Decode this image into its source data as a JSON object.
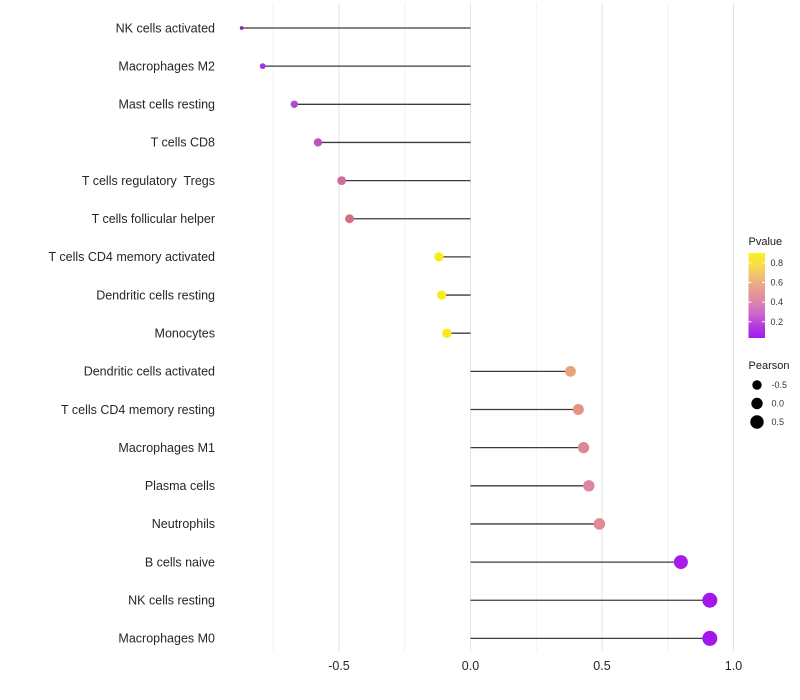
{
  "chart_data": {
    "type": "lollipop",
    "title": "",
    "xlabel": "",
    "ylabel": "",
    "x_tick_values": [
      -0.5,
      0.0,
      0.5,
      1.0
    ],
    "x_tick_labels": [
      "-0.5",
      "0.0",
      "0.5",
      "1.0"
    ],
    "x_minor_tick_values": [
      -0.75,
      -0.25,
      0.25,
      0.75
    ],
    "xlim": [
      -0.95,
      1.05
    ],
    "grid": "vertical-only",
    "legend_position": "right",
    "categories": [
      "NK cells activated",
      "Macrophages M2",
      "Mast cells resting",
      "T cells CD8",
      "T cells regulatory  Tregs",
      "T cells follicular helper",
      "T cells CD4 memory activated",
      "Dendritic cells resting",
      "Monocytes",
      "Dendritic cells activated",
      "T cells CD4 memory resting",
      "Macrophages M1",
      "Plasma cells",
      "Neutrophils",
      "B cells naive",
      "NK cells resting",
      "Macrophages M0"
    ],
    "points": [
      {
        "label": "NK cells activated",
        "pearson": -0.87,
        "pvalue": 0.15,
        "color": "#8326C9",
        "radius": 1.9
      },
      {
        "label": "Macrophages M2",
        "pearson": -0.79,
        "pvalue": 0.18,
        "color": "#A434E0",
        "radius": 2.9
      },
      {
        "label": "Mast cells resting",
        "pearson": -0.67,
        "pvalue": 0.25,
        "color": "#AF4CCC",
        "radius": 3.7
      },
      {
        "label": "T cells CD8",
        "pearson": -0.58,
        "pvalue": 0.32,
        "color": "#C052C0",
        "radius": 4.2
      },
      {
        "label": "T cells regulatory  Tregs",
        "pearson": -0.49,
        "pvalue": 0.45,
        "color": "#CC6D9C",
        "radius": 4.4
      },
      {
        "label": "T cells follicular helper",
        "pearson": -0.46,
        "pvalue": 0.48,
        "color": "#D07287",
        "radius": 4.5
      },
      {
        "label": "T cells CD4 memory activated",
        "pearson": -0.12,
        "pvalue": 0.88,
        "color": "#F6EC16",
        "radius": 4.6
      },
      {
        "label": "Dendritic cells resting",
        "pearson": -0.11,
        "pvalue": 0.88,
        "color": "#F6EC16",
        "radius": 4.6
      },
      {
        "label": "Monocytes",
        "pearson": -0.09,
        "pvalue": 0.87,
        "color": "#F5EA1C",
        "radius": 4.7
      },
      {
        "label": "Dendritic cells activated",
        "pearson": 0.38,
        "pvalue": 0.66,
        "color": "#E8A379",
        "radius": 5.4
      },
      {
        "label": "T cells CD4 memory resting",
        "pearson": 0.41,
        "pvalue": 0.6,
        "color": "#E4947F",
        "radius": 5.5
      },
      {
        "label": "Macrophages M1",
        "pearson": 0.43,
        "pvalue": 0.56,
        "color": "#DE8793",
        "radius": 5.6
      },
      {
        "label": "Plasma cells",
        "pearson": 0.45,
        "pvalue": 0.52,
        "color": "#DB86A3",
        "radius": 5.7
      },
      {
        "label": "Neutrophils",
        "pearson": 0.49,
        "pvalue": 0.55,
        "color": "#E08A93",
        "radius": 5.8
      },
      {
        "label": "B cells naive",
        "pearson": 0.8,
        "pvalue": 0.05,
        "color": "#A81BE8",
        "radius": 7.0
      },
      {
        "label": "NK cells resting",
        "pearson": 0.91,
        "pvalue": 0.04,
        "color": "#A417E9",
        "radius": 7.5
      },
      {
        "label": "Macrophages M0",
        "pearson": 0.91,
        "pvalue": 0.04,
        "color": "#A417E9",
        "radius": 7.5
      }
    ]
  },
  "legend_pvalue": {
    "title": "Pvalue",
    "tick_labels": [
      "0.8",
      "0.6",
      "0.4",
      "0.2"
    ],
    "tick_values": [
      0.8,
      0.6,
      0.4,
      0.2
    ],
    "bar_range": [
      0.9,
      0.035
    ],
    "gradient_top_to_bottom": [
      "#FAF021",
      "#F7DC4B",
      "#F0BC77",
      "#E79D92",
      "#DD87AC",
      "#CD66CD",
      "#B43BE0",
      "#A01BEB"
    ]
  },
  "legend_pearson": {
    "title": "Pearson",
    "items": [
      {
        "label": "-0.5",
        "radius": 4.7
      },
      {
        "label": "0.0",
        "radius": 5.7
      },
      {
        "label": "0.5",
        "radius": 6.7
      }
    ],
    "dot_color": "#000000"
  },
  "style": {
    "background": "#ffffff",
    "stem_color": "#3c3c3c",
    "grid_major_color": "#e3e3e3",
    "grid_minor_color": "#efefef",
    "axis_text_color": "#262626",
    "legend_text_color": "#333333"
  }
}
